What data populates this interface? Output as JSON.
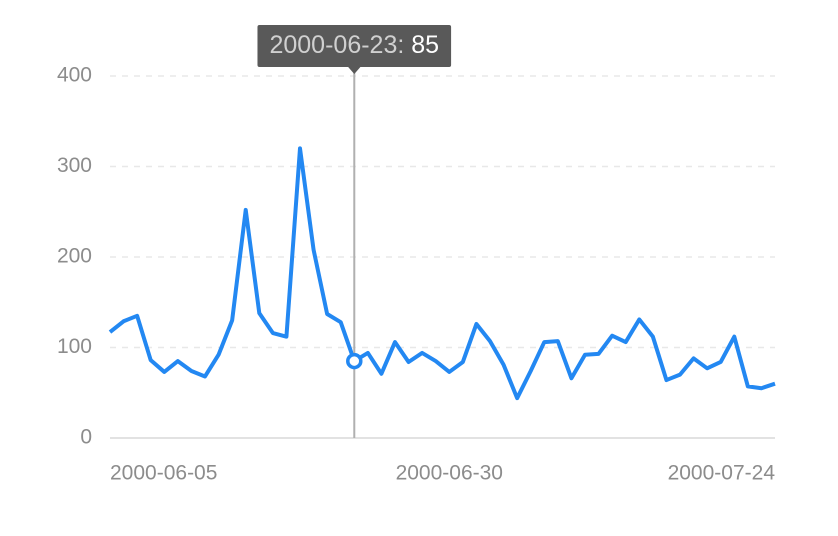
{
  "chart_data": {
    "type": "line",
    "x": [
      "2000-06-05",
      "2000-06-06",
      "2000-06-07",
      "2000-06-08",
      "2000-06-09",
      "2000-06-10",
      "2000-06-11",
      "2000-06-12",
      "2000-06-13",
      "2000-06-14",
      "2000-06-15",
      "2000-06-16",
      "2000-06-17",
      "2000-06-18",
      "2000-06-19",
      "2000-06-20",
      "2000-06-21",
      "2000-06-22",
      "2000-06-23",
      "2000-06-24",
      "2000-06-25",
      "2000-06-26",
      "2000-06-27",
      "2000-06-28",
      "2000-06-29",
      "2000-06-30",
      "2000-07-01",
      "2000-07-02",
      "2000-07-03",
      "2000-07-04",
      "2000-07-05",
      "2000-07-06",
      "2000-07-07",
      "2000-07-08",
      "2000-07-09",
      "2000-07-10",
      "2000-07-11",
      "2000-07-12",
      "2000-07-13",
      "2000-07-14",
      "2000-07-15",
      "2000-07-16",
      "2000-07-17",
      "2000-07-18",
      "2000-07-19",
      "2000-07-20",
      "2000-07-21",
      "2000-07-22",
      "2000-07-23",
      "2000-07-24"
    ],
    "series": [
      {
        "color": "#2388f2",
        "values": [
          117,
          129,
          135,
          86,
          73,
          85,
          74,
          68,
          92,
          130,
          252,
          138,
          116,
          112,
          320,
          208,
          137,
          128,
          85,
          94,
          71,
          106,
          84,
          94,
          85,
          73,
          84,
          126,
          107,
          81,
          44,
          74,
          106,
          107,
          66,
          92,
          93,
          113,
          106,
          131,
          112,
          64,
          70,
          88,
          77,
          84,
          112,
          57,
          55,
          60
        ]
      }
    ],
    "xlim": [
      "2000-06-05",
      "2000-07-24"
    ],
    "xticks": [
      "2000-06-05",
      "2000-06-30",
      "2000-07-24"
    ],
    "ylim": [
      0,
      400
    ],
    "yticks": [
      0,
      100,
      200,
      300,
      400
    ],
    "grid": true
  }
}
